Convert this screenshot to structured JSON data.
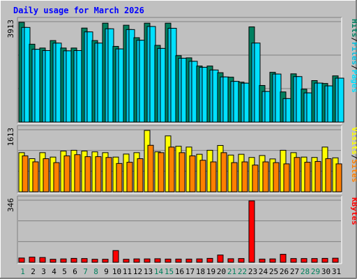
{
  "chart_data": {
    "type": "bar",
    "title": "Daily usage for March 2026",
    "categories": [
      "1",
      "2",
      "3",
      "4",
      "5",
      "6",
      "7",
      "8",
      "9",
      "10",
      "11",
      "12",
      "13",
      "14",
      "15",
      "16",
      "17",
      "18",
      "19",
      "20",
      "21",
      "22",
      "23",
      "24",
      "25",
      "26",
      "27",
      "28",
      "29",
      "30",
      "31"
    ],
    "weekend_days": [
      "1",
      "7",
      "8",
      "14",
      "15",
      "21",
      "22",
      "28",
      "29"
    ],
    "panels": [
      {
        "id": "hits",
        "ymax_label": "3913",
        "ylim": [
          0,
          3913
        ],
        "ylabel_parts": [
          "Pages",
          "/",
          "Files",
          "/",
          "Hits"
        ],
        "series": [
          {
            "name": "Hits",
            "color": "#008060",
            "values": [
              3913,
              3055,
              2905,
              3198,
              2905,
              2905,
              3688,
              3198,
              3880,
              2970,
              3800,
              3310,
              3880,
              3010,
              3880,
              2605,
              2520,
              2199,
              2199,
              1938,
              1761,
              1566,
              3734,
              1436,
              1953,
              1183,
              1893,
              1291,
              1628,
              1515,
              1813
            ]
          },
          {
            "name": "Files",
            "color": "#00c0e0",
            "values": [
              3713,
              2855,
              2805,
              3098,
              2795,
              2805,
              3538,
              3098,
              3660,
              2870,
              3630,
              3210,
              3750,
              2890,
              3680,
              2505,
              2384,
              2150,
              2043,
              1771,
              1597,
              1527,
              3100,
              1200,
              1885,
              921,
              1785,
              1145,
              1530,
              1420,
              1723
            ]
          },
          {
            "name": "Pages",
            "color": "#00e0ff",
            "values": [
              3713,
              2855,
              2805,
              3098,
              2795,
              2805,
              3538,
              3098,
              3660,
              2870,
              3630,
              3210,
              3750,
              2890,
              3680,
              2505,
              2384,
              2150,
              2043,
              1771,
              1597,
              1527,
              3100,
              1200,
              1885,
              921,
              1785,
              1145,
              1530,
              1420,
              1723
            ]
          }
        ]
      },
      {
        "id": "sites",
        "ymax_label": "1613",
        "ylim": [
          0,
          1613
        ],
        "ylabel_parts": [
          "Sites",
          "/",
          "Visits"
        ],
        "series": [
          {
            "name": "Visits",
            "color": "#ffff00",
            "values": [
              1029,
              871,
              1029,
              913,
              1071,
              1092,
              1071,
              1050,
              1029,
              913,
              992,
              1029,
              1613,
              1050,
              1470,
              1197,
              1176,
              987,
              1092,
              1218,
              966,
              987,
              903,
              954,
              864,
              1092,
              1029,
              913,
              903,
              1176,
              893
            ]
          },
          {
            "name": "Sites",
            "color": "#ff8000",
            "values": [
              945,
              788,
              871,
              767,
              945,
              976,
              924,
              924,
              903,
              745,
              777,
              871,
              1223,
              1029,
              1176,
              1029,
              945,
              829,
              787,
              1029,
              767,
              787,
              703,
              787,
              767,
              735,
              903,
              777,
              798,
              871,
              735
            ]
          }
        ]
      },
      {
        "id": "kbytes",
        "ymax_label": "346",
        "ylim": [
          0,
          346
        ],
        "ylabel_parts": [
          "KBytes"
        ],
        "series": [
          {
            "name": "KBytes",
            "color": "#ff0000",
            "values": [
              24,
              29,
              27,
              17,
              19,
              22,
              21,
              17,
              17,
              66,
              17,
              19,
              19,
              20,
              18,
              18,
              18,
              19,
              22,
              41,
              20,
              21,
              346,
              18,
              19,
              45,
              21,
              21,
              21,
              22,
              23
            ]
          }
        ]
      }
    ]
  }
}
